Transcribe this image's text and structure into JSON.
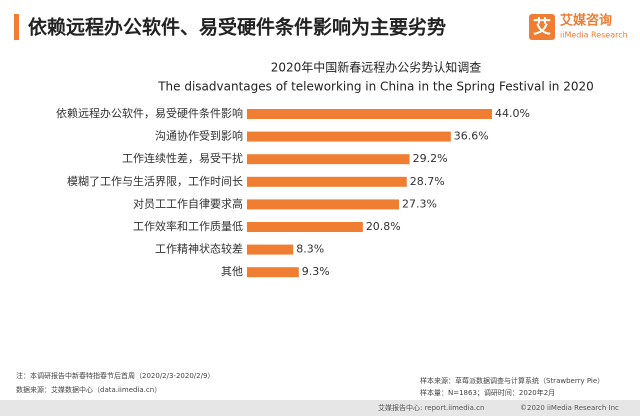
{
  "header": {
    "title": "依赖远程办公软件、易受硬件条件影响为主要劣势"
  },
  "logo": {
    "mark": "艾",
    "name": "艾媒咨询",
    "sub": "iiMedia Research"
  },
  "chart_data": {
    "type": "bar",
    "orientation": "horizontal",
    "title": "2020年中国新春远程办公劣势认知调查",
    "subtitle": "The disadvantages of teleworking in China in the Spring Festival in 2020",
    "categories": [
      "依赖远程办公软件，易受硬件条件影响",
      "沟通协作受到影响",
      "工作连续性差，易受干扰",
      "模糊了工作与生活界限，工作时间长",
      "对员工工作自律要求高",
      "工作效率和工作质量低",
      "工作精神状态较差",
      "其他"
    ],
    "values": [
      44.0,
      36.6,
      29.2,
      28.7,
      27.3,
      20.8,
      8.3,
      9.3
    ],
    "value_labels": [
      "44.0%",
      "36.6%",
      "29.2%",
      "28.7%",
      "27.3%",
      "20.8%",
      "8.3%",
      "9.3%"
    ],
    "color": "#ef7d32"
  },
  "footer": {
    "notes": [
      "注：本调研报告中新春特指春节后首周（2020/2/3-2020/2/9）",
      "数据来源：艾媒数据中心（data.iimedia.cn）"
    ],
    "samples": [
      "样本来源：草莓派数据调查与计算系统（Strawberry Pie）",
      "样本量：N=1863；调研时间：2020年2月"
    ],
    "bottom_left": "艾媒报告中心: report.iimedia.cn",
    "bottom_right": "©2020 iiMedia Research Inc"
  }
}
